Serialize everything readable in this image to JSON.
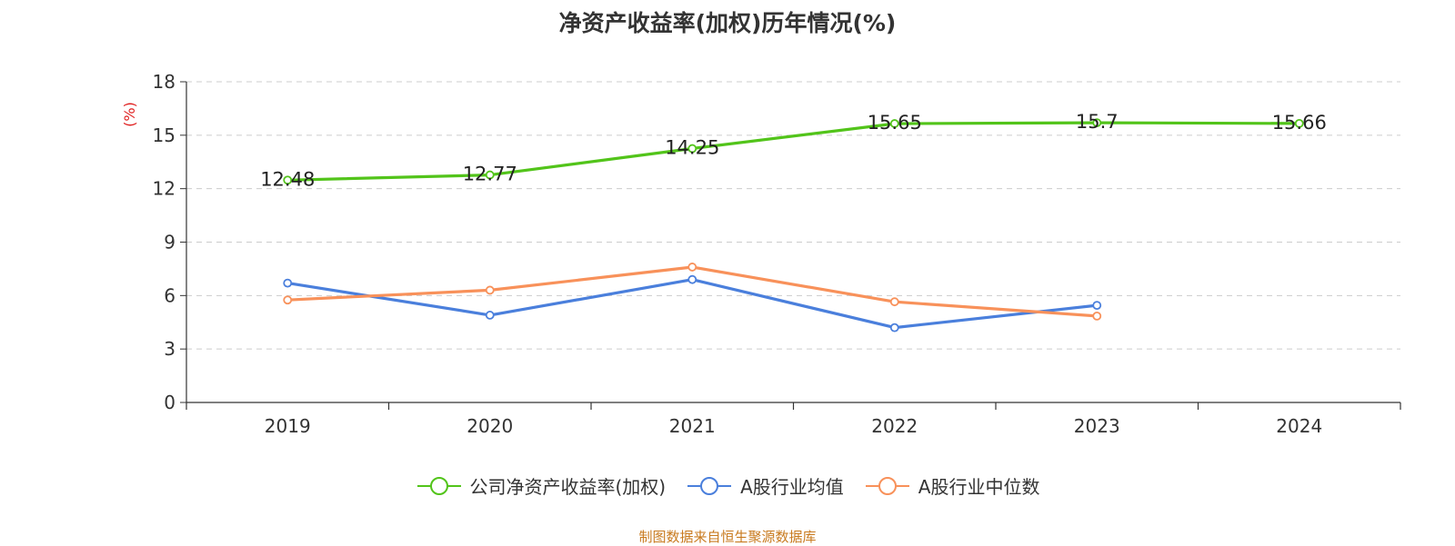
{
  "chart_data": {
    "type": "line",
    "title": "净资产收益率(加权)历年情况(%)",
    "ylabel": "(%)",
    "xlabel": "",
    "categories": [
      "2019",
      "2020",
      "2021",
      "2022",
      "2023",
      "2024"
    ],
    "ylim": [
      0,
      18
    ],
    "yticks": [
      0,
      3,
      6,
      9,
      12,
      15,
      18
    ],
    "grid": true,
    "legend_position": "bottom",
    "series": [
      {
        "name": "公司净资产收益率(加权)",
        "color": "#52c41a",
        "values": [
          12.48,
          12.77,
          14.25,
          15.65,
          15.7,
          15.66
        ],
        "labels": [
          "12.48",
          "12.77",
          "14.25",
          "15.65",
          "15.7",
          "15.66"
        ],
        "show_labels": true
      },
      {
        "name": "A股行业均值",
        "color": "#4a7fdc",
        "values": [
          6.7,
          4.9,
          6.9,
          4.2,
          5.45,
          null
        ],
        "show_labels": false
      },
      {
        "name": "A股行业中位数",
        "color": "#f8915a",
        "values": [
          5.75,
          6.3,
          7.6,
          5.65,
          4.85,
          null
        ],
        "show_labels": false
      }
    ],
    "source_note": "制图数据来自恒生聚源数据库",
    "source_color": "#c87a1e",
    "ylabel_color": "#e02020"
  }
}
